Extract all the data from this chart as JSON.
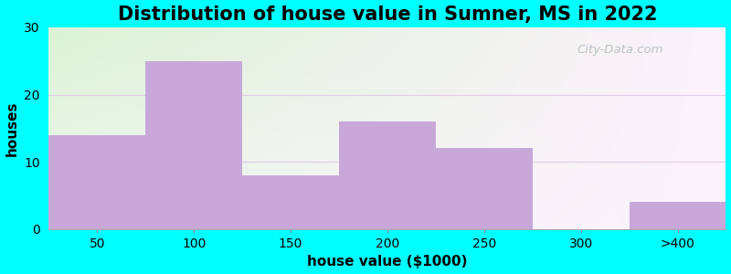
{
  "title": "Distribution of house value in Sumner, MS in 2022",
  "xlabel": "house value ($1000)",
  "ylabel": "houses",
  "bar_labels": [
    "50",
    "100",
    "150",
    "200",
    "250",
    "300",
    ">400"
  ],
  "bar_values": [
    14,
    25,
    8,
    16,
    12,
    0,
    4
  ],
  "bar_color": "#c8a8d8",
  "ylim": [
    0,
    30
  ],
  "yticks": [
    0,
    10,
    20,
    30
  ],
  "figure_bg": "#00ffff",
  "title_fontsize": 15,
  "axis_label_fontsize": 11,
  "tick_fontsize": 10,
  "watermark_text": "City-Data.com",
  "bg_top_left": "#d8ecd0",
  "bg_top_right": "#eef5f0",
  "bg_bottom_left": "#e8f4e0",
  "bg_bottom_right": "#f5fbf8",
  "gridline_color": "#e0d8e8"
}
